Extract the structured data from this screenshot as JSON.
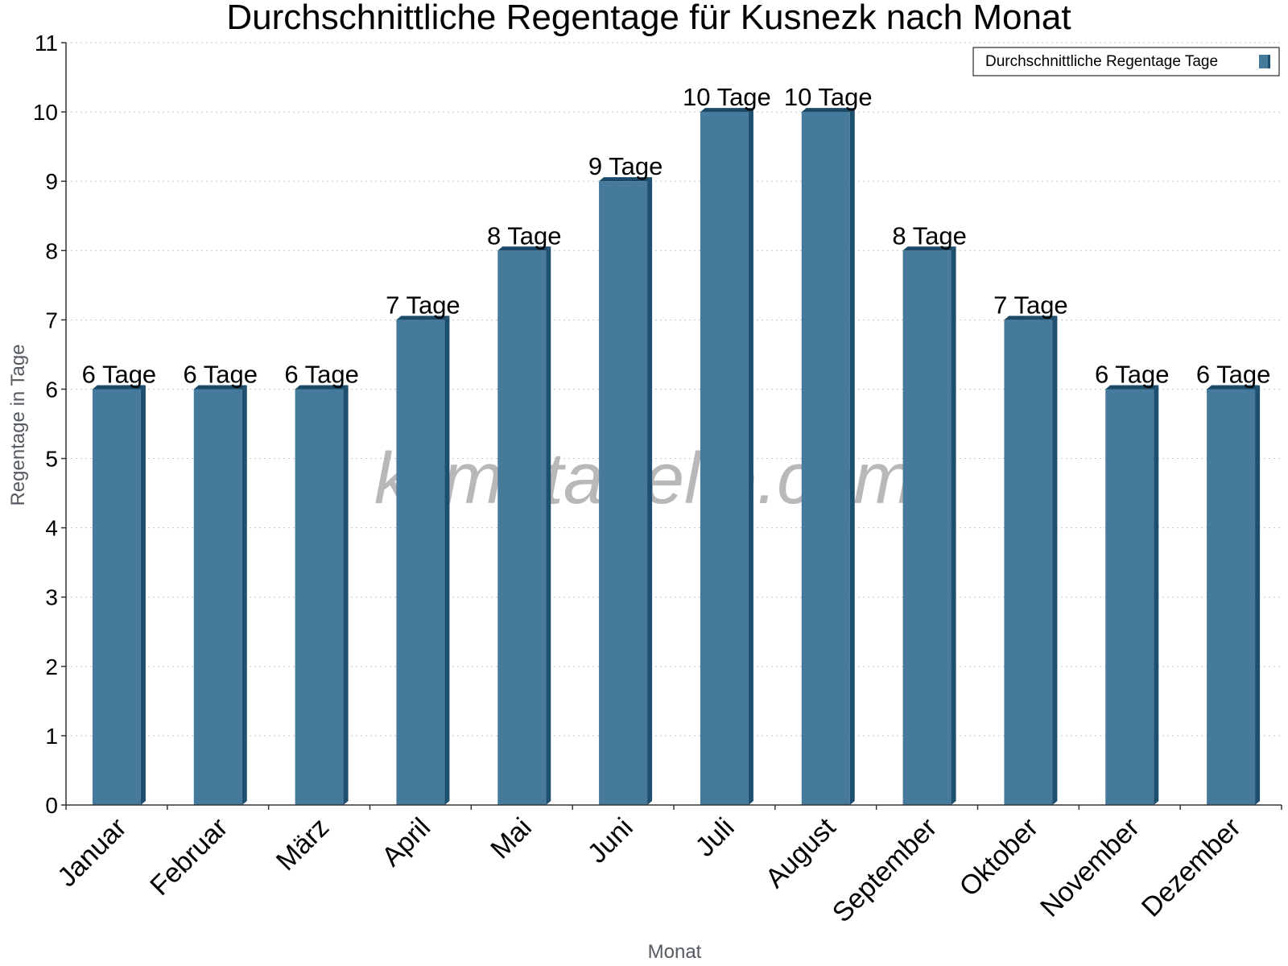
{
  "watermark": "klimatabelle.com",
  "colors": {
    "bar_front": "#467a9c",
    "bar_side": "#1f4f6e",
    "bar_top": "#1a4a68",
    "grid": "#c8c8c8",
    "axis": "#333333",
    "watermark": "#8a8a8a"
  },
  "chart_data": {
    "type": "bar",
    "title": "Durchschnittliche Regentage für Kusnezk nach Monat",
    "xlabel": "Monat",
    "ylabel": "Regentage in Tage",
    "categories": [
      "Januar",
      "Februar",
      "März",
      "April",
      "Mai",
      "Juni",
      "Juli",
      "August",
      "September",
      "Oktober",
      "November",
      "Dezember"
    ],
    "series": [
      {
        "name": "Durchschnittliche Regentage Tage",
        "values": [
          6,
          6,
          6,
          7,
          8,
          9,
          10,
          10,
          8,
          7,
          6,
          6
        ],
        "labels": [
          "6 Tage",
          "6 Tage",
          "6 Tage",
          "7 Tage",
          "8 Tage",
          "9 Tage",
          "10 Tage",
          "10 Tage",
          "8 Tage",
          "7 Tage",
          "6 Tage",
          "6 Tage"
        ]
      }
    ],
    "ylim": [
      0,
      11
    ],
    "yticks": [
      0,
      1,
      2,
      3,
      4,
      5,
      6,
      7,
      8,
      9,
      10,
      11
    ],
    "grid": true,
    "legend_position": "top-right"
  }
}
